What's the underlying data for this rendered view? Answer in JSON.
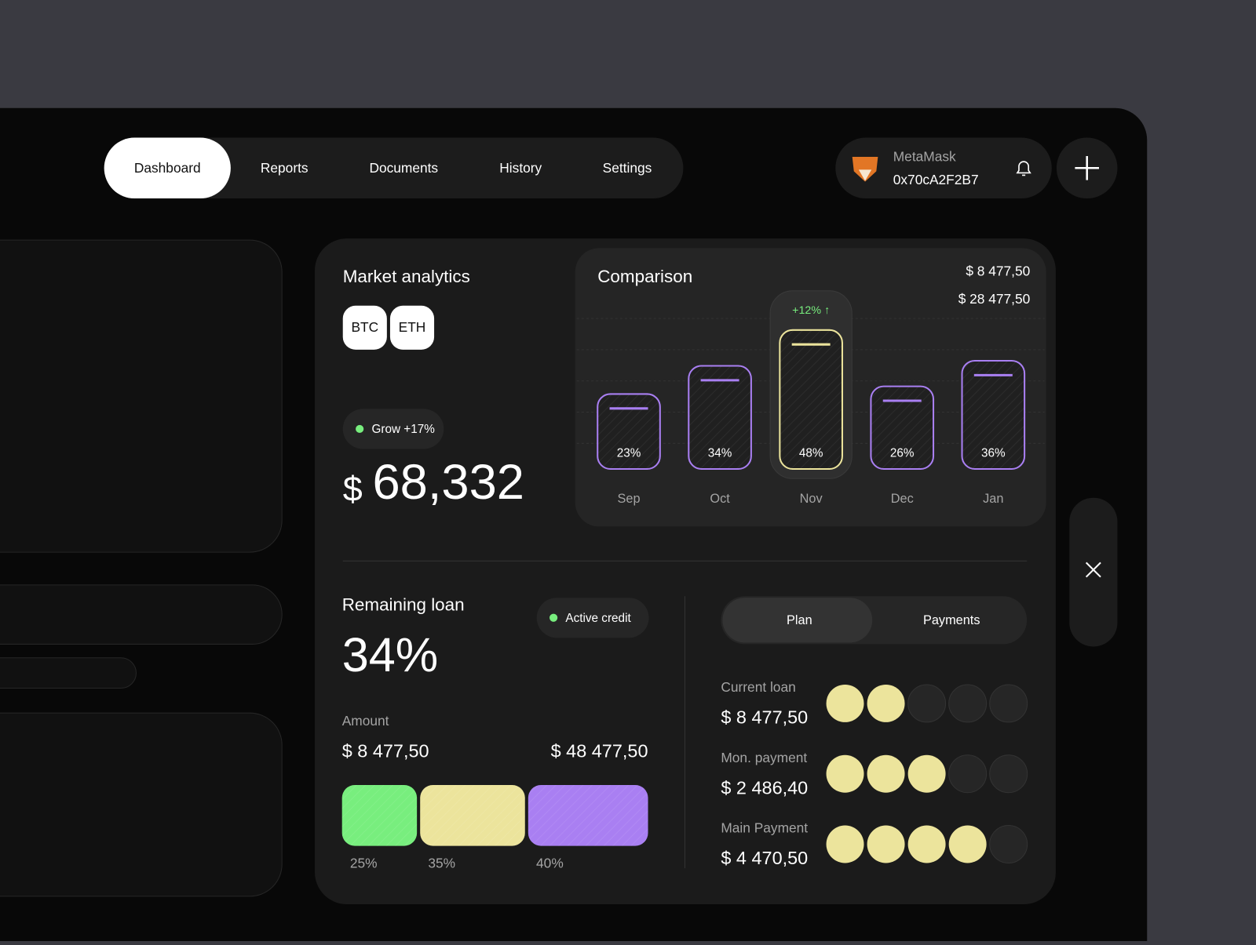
{
  "nav": {
    "items": [
      "Dashboard",
      "Reports",
      "Documents",
      "History",
      "Settings"
    ]
  },
  "wallet": {
    "name": "MetaMask",
    "address": "0x70cA2F2B7"
  },
  "market": {
    "title": "Market analytics",
    "tags": [
      "BTC",
      "ETH"
    ],
    "badge": "Grow +17%",
    "currency": "$",
    "value": "68,332"
  },
  "chart_data": {
    "type": "bar",
    "title": "Comparison",
    "totals": [
      "$ 8 477,50",
      "$ 28 477,50"
    ],
    "categories": [
      "Sep",
      "Oct",
      "Nov",
      "Dec",
      "Jan"
    ],
    "values": [
      23,
      34,
      48,
      26,
      36
    ],
    "value_labels": [
      "23%",
      "34%",
      "48%",
      "26%",
      "36%"
    ],
    "colors": [
      "#a97ff2",
      "#a97ff2",
      "#ece49c",
      "#a97ff2",
      "#a97ff2"
    ],
    "annotation": "+12% ↑",
    "annotation_at": "Nov"
  },
  "loan": {
    "title": "Remaining loan",
    "status": "Active credit",
    "value": "34%",
    "amount_label": "Amount",
    "amount_from": "$ 8 477,50",
    "amount_to": "$ 48 477,50",
    "segments": {
      "values": [
        25,
        35,
        40
      ],
      "value_labels": [
        "25%",
        "35%",
        "40%"
      ],
      "colors": [
        "#78ee7e",
        "#ece49c",
        "#a97ff2"
      ]
    }
  },
  "plan": {
    "tabs": [
      "Plan",
      "Payments"
    ],
    "rows": [
      {
        "label": "Current loan",
        "amount": "$ 8 477,50",
        "filled": 2,
        "total": 5
      },
      {
        "label": "Mon. payment",
        "amount": "$ 2 486,40",
        "filled": 3,
        "total": 5
      },
      {
        "label": "Main Payment",
        "amount": "$ 4 470,50",
        "filled": 4,
        "total": 5
      }
    ]
  }
}
